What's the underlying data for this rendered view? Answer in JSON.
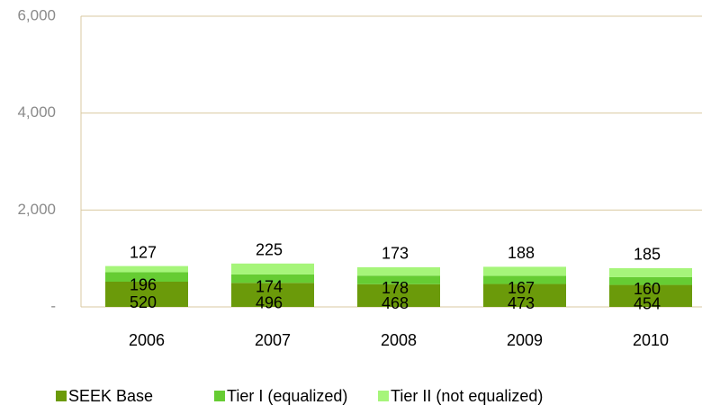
{
  "chart_data": {
    "type": "stacked_bar",
    "categories": [
      "2006",
      "2007",
      "2008",
      "2009",
      "2010"
    ],
    "series": [
      {
        "name": "SEEK Base",
        "color": "#6b9a0a",
        "values": [
          520,
          496,
          468,
          473,
          454
        ]
      },
      {
        "name": "Tier I (equalized)",
        "color": "#66cc33",
        "values": [
          196,
          174,
          178,
          167,
          160
        ]
      },
      {
        "name": "Tier II (not equalized)",
        "color": "#a6f57a",
        "values": [
          127,
          225,
          173,
          188,
          185
        ]
      }
    ],
    "ylim": [
      0,
      6000
    ],
    "yticks": [
      {
        "value": 0,
        "label": "-"
      },
      {
        "value": 2000,
        "label": "2,000"
      },
      {
        "value": 4000,
        "label": "4,000"
      },
      {
        "value": 6000,
        "label": "6,000"
      }
    ],
    "legend": "bottom"
  }
}
